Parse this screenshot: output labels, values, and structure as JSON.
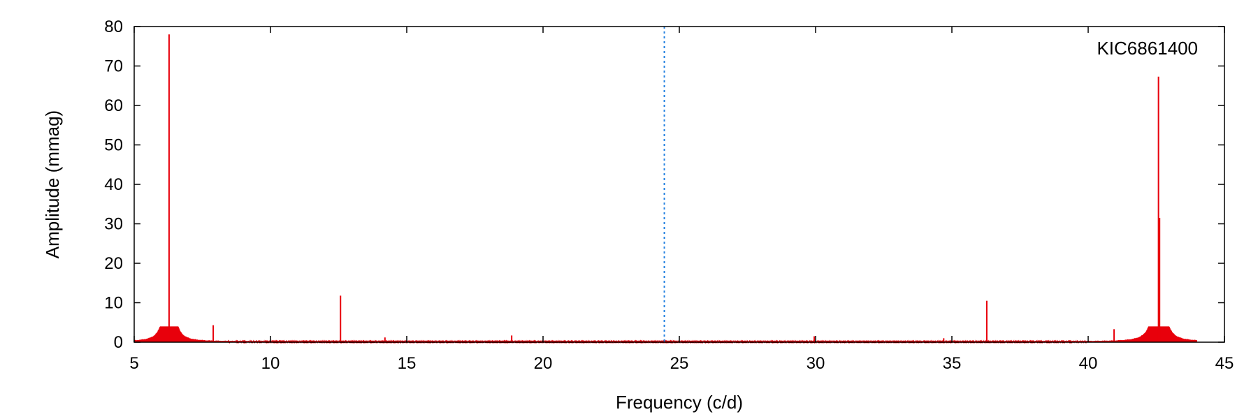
{
  "chart_data": {
    "type": "line",
    "title": "",
    "xlabel": "Frequency (c/d)",
    "ylabel": "Amplitude (mmag)",
    "xlim": [
      5,
      45
    ],
    "ylim": [
      0,
      80
    ],
    "xticks": [
      5,
      10,
      15,
      20,
      25,
      30,
      35,
      40,
      45
    ],
    "yticks": [
      0,
      10,
      20,
      30,
      40,
      50,
      60,
      70,
      80
    ],
    "grid": false,
    "series": [
      {
        "color": "#e8000b",
        "spectrum_range": [
          5,
          44
        ],
        "peaks": [
          {
            "x": 6.28,
            "y": 78
          },
          {
            "x": 7.9,
            "y": 4.3
          },
          {
            "x": 12.57,
            "y": 11.8
          },
          {
            "x": 14.2,
            "y": 1.2
          },
          {
            "x": 18.85,
            "y": 1.7
          },
          {
            "x": 29.95,
            "y": 1.5
          },
          {
            "x": 34.7,
            "y": 1.0
          },
          {
            "x": 36.28,
            "y": 10.5
          },
          {
            "x": 40.95,
            "y": 3.3
          },
          {
            "x": 42.58,
            "y": 67.3
          },
          {
            "x": 42.62,
            "y": 31.5
          }
        ]
      }
    ],
    "reference_line": {
      "x": 24.45,
      "style": "dotted",
      "color": "#1f7fe0"
    },
    "annotations": [
      {
        "text": "KIC6861400",
        "position": "top-right"
      }
    ]
  }
}
